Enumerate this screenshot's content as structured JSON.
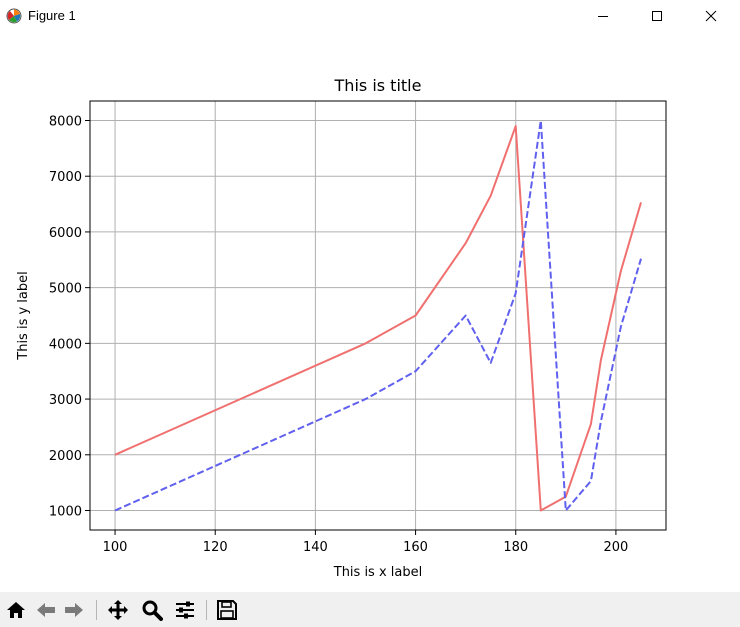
{
  "window": {
    "title": "Figure 1",
    "controls": {
      "minimize": "—",
      "maximize": "☐",
      "close": "✕"
    }
  },
  "toolbar": {
    "buttons": [
      {
        "name": "home-icon"
      },
      {
        "name": "back-icon"
      },
      {
        "name": "forward-icon"
      },
      {
        "name": "pan-icon"
      },
      {
        "name": "zoom-icon"
      },
      {
        "name": "configure-subplots-icon"
      },
      {
        "name": "save-icon"
      }
    ]
  },
  "chart_data": {
    "type": "line",
    "title": "This is title",
    "xlabel": "This is x label",
    "ylabel": "This is y label",
    "xlim": [
      95,
      210
    ],
    "ylim": [
      650,
      8350
    ],
    "xticks": [
      100,
      120,
      140,
      160,
      180,
      200
    ],
    "yticks": [
      1000,
      2000,
      3000,
      4000,
      5000,
      6000,
      7000,
      8000
    ],
    "grid": true,
    "series": [
      {
        "color": "#f07070",
        "style": "solid",
        "x": [
          100,
          150,
          160,
          170,
          175,
          180,
          185,
          190,
          195,
          197,
          201,
          205
        ],
        "y": [
          2000,
          4000,
          4500,
          5800,
          6650,
          7900,
          1000,
          1250,
          2550,
          3700,
          5300,
          6530
        ]
      },
      {
        "color": "#6060f0",
        "style": "dashed",
        "x": [
          100,
          150,
          160,
          170,
          175,
          180,
          185,
          190,
          195,
          197,
          201,
          205
        ],
        "y": [
          1000,
          3000,
          3500,
          4500,
          3650,
          4900,
          8000,
          1000,
          1530,
          2600,
          4300,
          5520
        ]
      }
    ]
  }
}
